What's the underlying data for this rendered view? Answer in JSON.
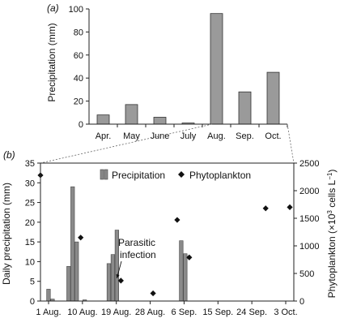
{
  "chart_data": [
    {
      "panel_label": "(a)",
      "type": "bar",
      "categories": [
        "Apr.",
        "May",
        "June",
        "July",
        "Aug.",
        "Sep.",
        "Oct."
      ],
      "values": [
        8,
        17,
        6,
        1,
        96,
        28,
        45
      ],
      "xlabel": "",
      "ylabel": "Precipitation (mm)",
      "ylim": [
        0,
        100
      ],
      "yticks": [
        0,
        20,
        40,
        60,
        80,
        100
      ],
      "grid": false
    },
    {
      "panel_label": "(b)",
      "type": "bar+scatter",
      "x_ticks": [
        "1 Aug.",
        "10 Aug.",
        "19 Aug.",
        "28 Aug.",
        "6 Sep.",
        "15 Sep.",
        "24 Sep.",
        "3 Oct."
      ],
      "xlim": [
        "2010-08-01",
        "2010-10-03"
      ],
      "ylabel_left": "Daily precipitation (mm)",
      "ylim_left": [
        0,
        35
      ],
      "yticks_left": [
        0,
        5,
        10,
        15,
        20,
        25,
        30,
        35
      ],
      "ylabel_right": "Phytoplankton (×10",
      "ylabel_right_exp": "3",
      "ylabel_right_tail": " cells L",
      "ylabel_right_tail_exp": "−1",
      "ylabel_right_end": ")",
      "ylim_right": [
        0,
        2500
      ],
      "yticks_right": [
        0,
        500,
        1000,
        1500,
        2000,
        2500
      ],
      "legend_position": "top",
      "series": [
        {
          "name": "Precipitation",
          "type": "bar",
          "axis": "left",
          "points": [
            {
              "x": "2010-08-03",
              "y": 3
            },
            {
              "x": "2010-08-04",
              "y": 0.5
            },
            {
              "x": "2010-08-08",
              "y": 8.8
            },
            {
              "x": "2010-08-09",
              "y": 29
            },
            {
              "x": "2010-08-10",
              "y": 15
            },
            {
              "x": "2010-08-12",
              "y": 0.3
            },
            {
              "x": "2010-08-18",
              "y": 9.5
            },
            {
              "x": "2010-08-19",
              "y": 11.8
            },
            {
              "x": "2010-08-20",
              "y": 18
            },
            {
              "x": "2010-09-05",
              "y": 15.3
            },
            {
              "x": "2010-09-06",
              "y": 12
            }
          ]
        },
        {
          "name": "Phytoplankton",
          "type": "scatter",
          "axis": "right",
          "points": [
            {
              "x": "2010-08-01",
              "y": 2280
            },
            {
              "x": "2010-08-11",
              "y": 1150
            },
            {
              "x": "2010-08-21",
              "y": 370
            },
            {
              "x": "2010-08-29",
              "y": 140
            },
            {
              "x": "2010-09-04",
              "y": 1470
            },
            {
              "x": "2010-09-07",
              "y": 790
            },
            {
              "x": "2010-09-26",
              "y": 1680
            },
            {
              "x": "2010-10-02",
              "y": 1700
            }
          ]
        }
      ],
      "annotations": [
        {
          "line1": "Parasitic",
          "line2": "infection",
          "x": "2010-08-21",
          "series": "Phytoplankton"
        }
      ]
    }
  ]
}
